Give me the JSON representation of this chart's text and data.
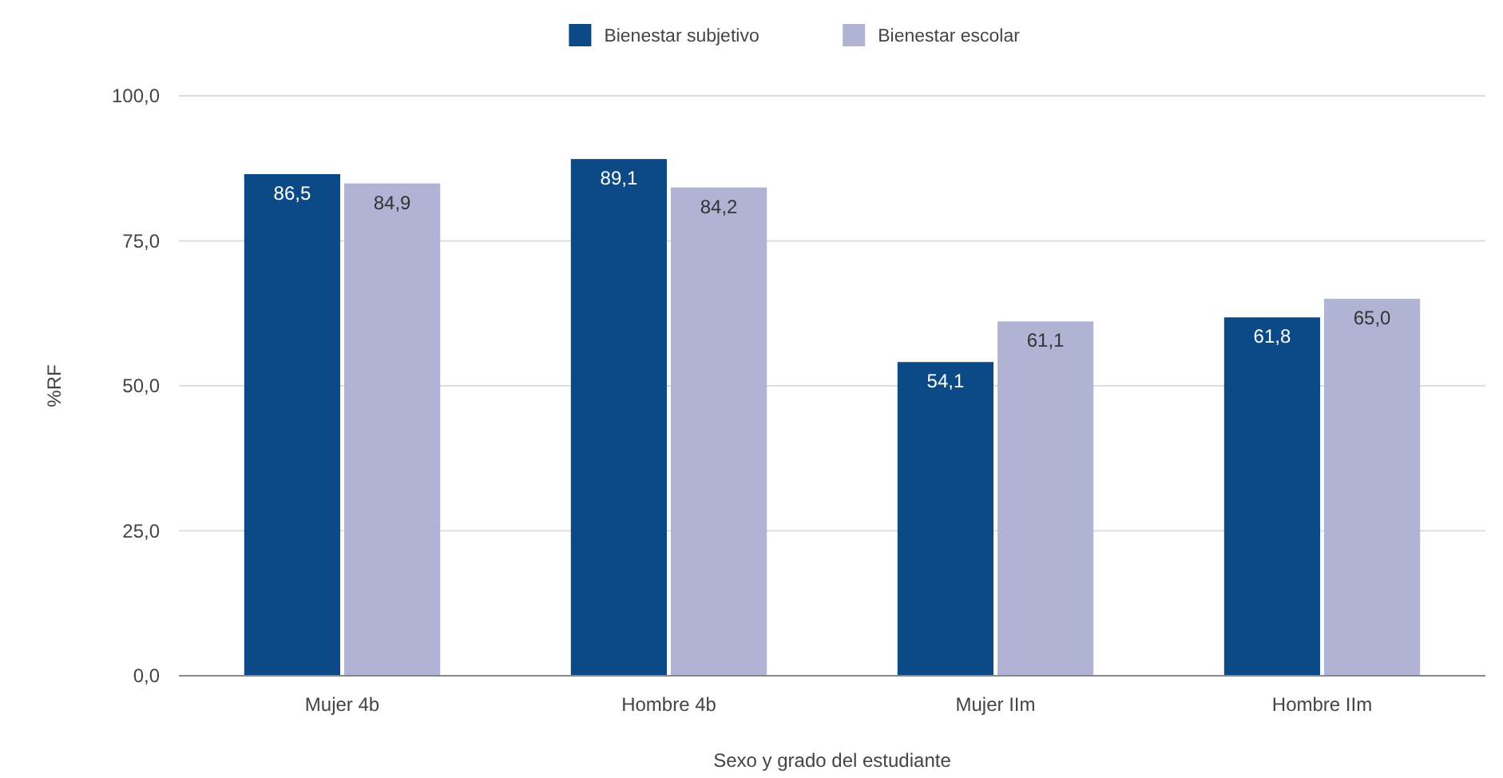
{
  "chart_data": {
    "type": "bar",
    "xlabel": "Sexo y grado del estudiante",
    "ylabel": "%RF",
    "categories": [
      "Mujer 4b",
      "Hombre 4b",
      "Mujer IIm",
      "Hombre IIm"
    ],
    "series": [
      {
        "name": "Bienestar subjetivo",
        "color": "#0b4a86",
        "values": [
          86.5,
          89.1,
          54.1,
          61.8
        ],
        "value_labels": [
          "86,5",
          "89,1",
          "54,1",
          "61,8"
        ]
      },
      {
        "name": "Bienestar escolar",
        "color": "#b0b3d3",
        "values": [
          84.9,
          84.2,
          61.1,
          65.0
        ],
        "value_labels": [
          "84,9",
          "84,2",
          "61,1",
          "65,0"
        ]
      }
    ],
    "ylim": [
      0,
      100
    ],
    "yticks": [
      {
        "value": 0,
        "label": "0,0"
      },
      {
        "value": 25,
        "label": "25,0"
      },
      {
        "value": 50,
        "label": "50,0"
      },
      {
        "value": 75,
        "label": "75,0"
      },
      {
        "value": 100,
        "label": "100,0"
      }
    ],
    "grid": "y",
    "legend": "top"
  }
}
